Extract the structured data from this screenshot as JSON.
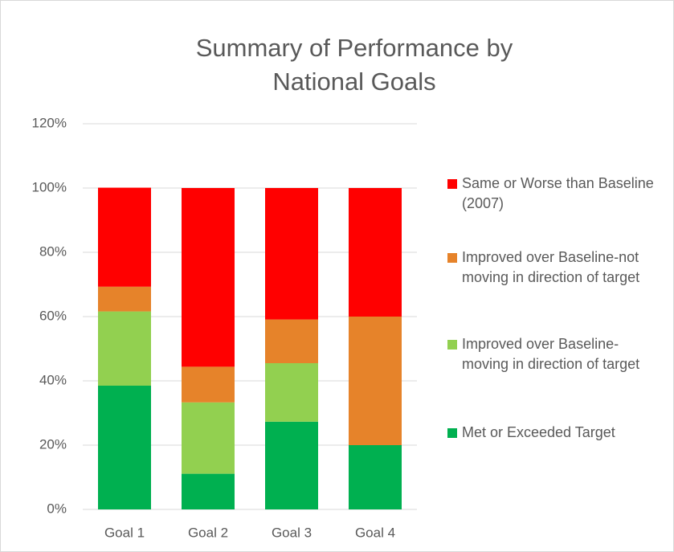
{
  "chart_data": {
    "type": "stacked_bar",
    "title": "Summary of Performance by National Goals",
    "categories": [
      "Goal 1",
      "Goal 2",
      "Goal 3",
      "Goal 4"
    ],
    "series": [
      {
        "name": "Met or Exceeded Target",
        "color": "#00b050",
        "values": [
          38.5,
          11.1,
          27.3,
          20
        ]
      },
      {
        "name": "Improved over Baseline-moving in direction of target",
        "color": "#92d050",
        "values": [
          23.1,
          22.2,
          18.2,
          0
        ]
      },
      {
        "name": "Improved over Baseline-not moving in direction of target",
        "color": "#e6832a",
        "values": [
          7.7,
          11.1,
          13.6,
          40
        ]
      },
      {
        "name": "Same or Worse than Baseline (2007)",
        "color": "#ff0000",
        "values": [
          30.8,
          55.6,
          40.9,
          40
        ]
      }
    ],
    "ylim": [
      0,
      120
    ],
    "yticks": [
      {
        "value": 0,
        "label": "0%"
      },
      {
        "value": 20,
        "label": "20%"
      },
      {
        "value": 40,
        "label": "40%"
      },
      {
        "value": 60,
        "label": "60%"
      },
      {
        "value": 80,
        "label": "80%"
      },
      {
        "value": 100,
        "label": "100%"
      },
      {
        "value": 120,
        "label": "120%"
      }
    ],
    "grid": true,
    "legend": "right"
  }
}
